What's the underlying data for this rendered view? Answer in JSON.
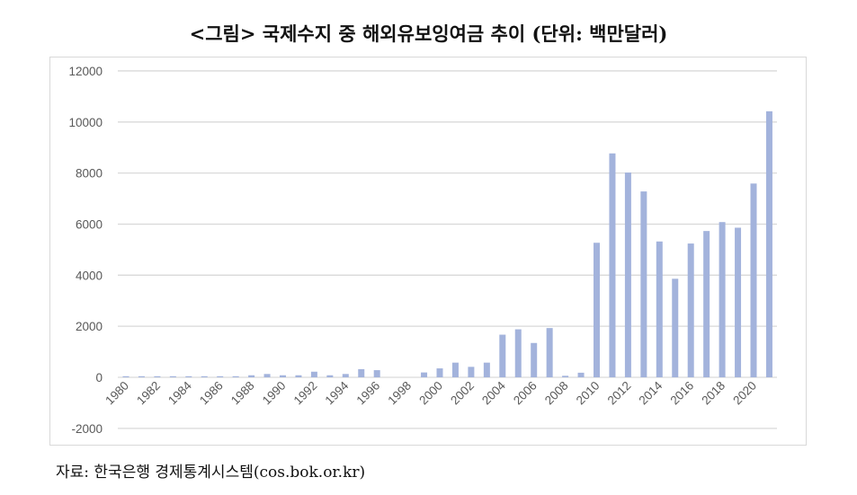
{
  "title": "<그림> 국제수지 중 해외유보잉여금 추이 (단위: 백만달러)",
  "source": "자료: 한국은행 경제통계시스템(cos.bok.or.kr)",
  "colors": {
    "bar": "#A3B3DC",
    "gridline": "#d9d9d9",
    "axis_text": "#595959",
    "frame": "#d9d9d9"
  },
  "chart_data": {
    "type": "bar",
    "title": "<그림> 국제수지 중 해외유보잉여금 추이 (단위: 백만달러)",
    "xlabel": "",
    "ylabel": "",
    "unit": "백만달러",
    "ylim": [
      -2000,
      12000
    ],
    "yticks": [
      12000,
      10000,
      8000,
      6000,
      4000,
      2000,
      0,
      -2000
    ],
    "grid": true,
    "legend": null,
    "categories": [
      "1980",
      "1981",
      "1982",
      "1983",
      "1984",
      "1985",
      "1986",
      "1987",
      "1988",
      "1989",
      "1990",
      "1991",
      "1992",
      "1993",
      "1994",
      "1995",
      "1996",
      "1997",
      "1998",
      "1999",
      "2000",
      "2001",
      "2002",
      "2003",
      "2004",
      "2005",
      "2006",
      "2007",
      "2008",
      "2009",
      "2010",
      "2011",
      "2012",
      "2013",
      "2014",
      "2015",
      "2016",
      "2017",
      "2018",
      "2019",
      "2020",
      "2021"
    ],
    "xtick_labels": [
      "1980",
      "1982",
      "1984",
      "1986",
      "1988",
      "1990",
      "1992",
      "1994",
      "1996",
      "1998",
      "2000",
      "2002",
      "2004",
      "2006",
      "2008",
      "2010",
      "2012",
      "2014",
      "2016",
      "2018",
      "2020"
    ],
    "series": [
      {
        "name": "해외유보잉여금",
        "values": [
          40,
          40,
          40,
          40,
          40,
          40,
          40,
          40,
          80,
          130,
          80,
          80,
          220,
          80,
          130,
          320,
          280,
          0,
          0,
          190,
          350,
          575,
          410,
          575,
          1670,
          1880,
          1345,
          1930,
          60,
          180,
          5270,
          8770,
          8020,
          7280,
          5320,
          3860,
          5240,
          5730,
          6080,
          5860,
          7590,
          10420
        ]
      }
    ]
  }
}
